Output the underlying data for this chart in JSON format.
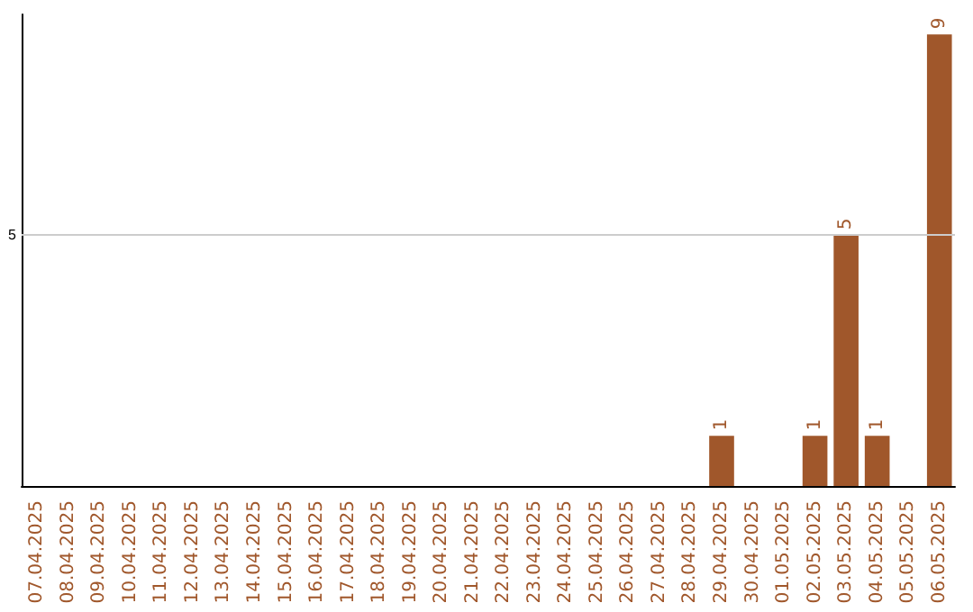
{
  "chart_data": {
    "type": "bar",
    "categories": [
      "07.04.2025",
      "08.04.2025",
      "09.04.2025",
      "10.04.2025",
      "11.04.2025",
      "12.04.2025",
      "13.04.2025",
      "14.04.2025",
      "15.04.2025",
      "16.04.2025",
      "17.04.2025",
      "18.04.2025",
      "19.04.2025",
      "20.04.2025",
      "21.04.2025",
      "22.04.2025",
      "23.04.2025",
      "24.04.2025",
      "25.04.2025",
      "26.04.2025",
      "27.04.2025",
      "28.04.2025",
      "29.04.2025",
      "30.04.2025",
      "01.05.2025",
      "02.05.2025",
      "03.05.2025",
      "04.05.2025",
      "05.05.2025",
      "06.05.2025"
    ],
    "values": [
      null,
      null,
      null,
      null,
      null,
      null,
      null,
      null,
      null,
      null,
      null,
      null,
      null,
      null,
      null,
      null,
      null,
      null,
      null,
      null,
      null,
      null,
      1,
      null,
      null,
      1,
      5,
      1,
      null,
      9
    ],
    "data_labels": true,
    "ylim": [
      0,
      9.4
    ],
    "ref_lines": [
      {
        "axis": "y",
        "value": 5,
        "label": "5",
        "color": "#cccccc"
      }
    ],
    "color": "#a0572b"
  }
}
